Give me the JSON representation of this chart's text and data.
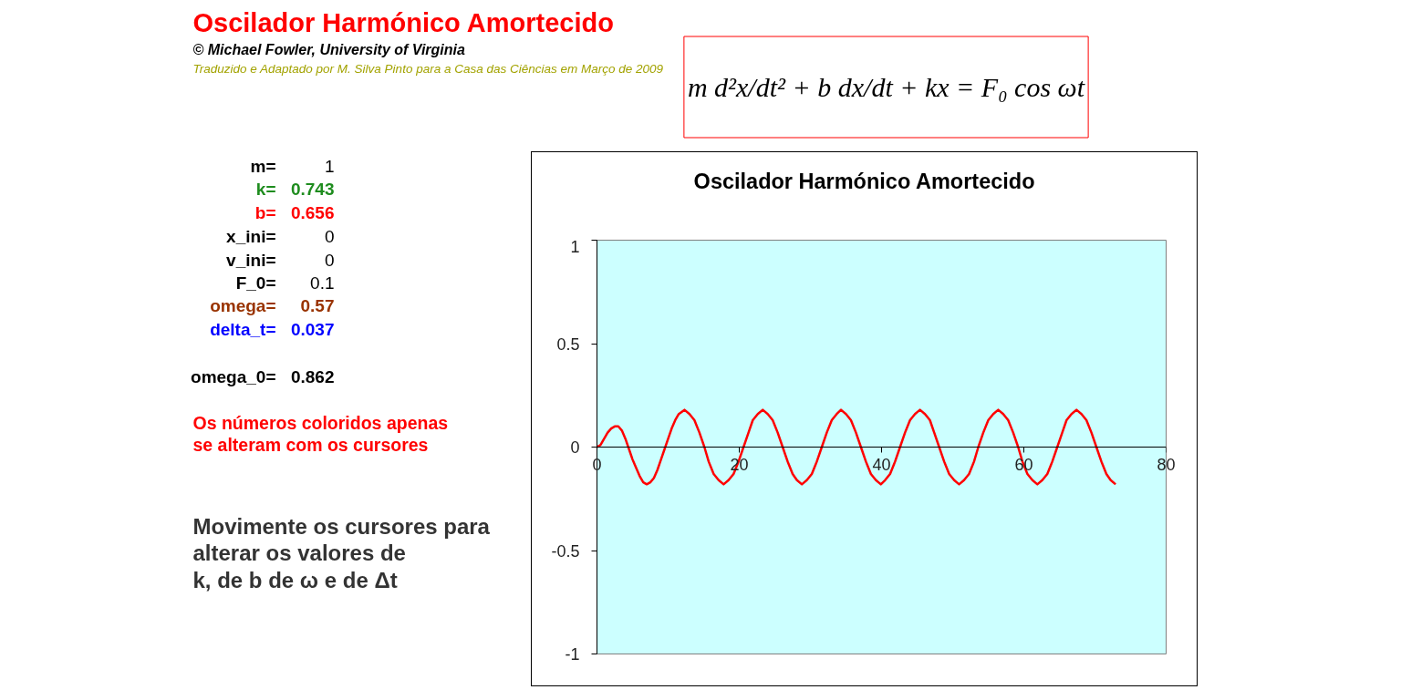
{
  "chart_data": {
    "type": "line",
    "title": "Oscilador Harmónico Amortecido",
    "annotations": [
      "Oscilador Harmónico Amortecido",
      "© Michael Fowler, University of Virginia",
      "Traduzido e Adaptado por M. Silva Pinto para a Casa das Ciências em Março de 2009",
      "m d²x/dt² + b dx/dt + kx = F₀ cos ωt",
      "m=",
      "1",
      "k=",
      "0.743",
      "b=",
      "0.656",
      "x_ini=",
      "0",
      "v_ini=",
      "0",
      "F_0=",
      "0.1",
      "omega=",
      "0.57",
      "delta_t=",
      "0.037",
      "omega_0=",
      "0.862",
      "Os números coloridos apenas",
      "se alteram com os cursores",
      "Movimente os cursores para",
      "alterar os valores de",
      "k, de b de ω e de Δt"
    ],
    "x": [
      0,
      0.5,
      1,
      1.5,
      2,
      2.5,
      3,
      3.5,
      4,
      4.5,
      5,
      5.5,
      6,
      6.5,
      7,
      7.5,
      8,
      8.5,
      9,
      9.5,
      10,
      10.5,
      11,
      11.5,
      12.3,
      13.0,
      13.7,
      14.4,
      15.1,
      15.7,
      16.4,
      17.1,
      17.8,
      18.5,
      19.2,
      19.9,
      20.6,
      21.3,
      21.9,
      22.6,
      23.3,
      24.0,
      24.7,
      25.4,
      26.1,
      26.8,
      27.5,
      28.1,
      28.8,
      29.5,
      30.2,
      30.9,
      31.6,
      32.3,
      33.0,
      33.7,
      34.3,
      35.0,
      35.7,
      36.4,
      37.1,
      37.8,
      38.5,
      39.2,
      39.9,
      40.5,
      41.2,
      41.9,
      42.6,
      43.3,
      44.0,
      44.7,
      45.4,
      46.1,
      46.8,
      47.4,
      48.1,
      48.8,
      49.5,
      50.2,
      50.9,
      51.6,
      52.3,
      53.0,
      53.6,
      54.3,
      55.0,
      55.7,
      56.4,
      57.1,
      57.8,
      58.5,
      59.2,
      59.8,
      60.5,
      61.2,
      61.9,
      62.6,
      63.3,
      64.0,
      64.7,
      65.4,
      66.0,
      66.7,
      67.4,
      68.1,
      68.8,
      69.5,
      70.2,
      70.9,
      71.6,
      72.2,
      72.9
    ],
    "series": [
      {
        "color": "#ff0000",
        "values": [
          0,
          0.01,
          0.04,
          0.07,
          0.09,
          0.1,
          0.1,
          0.08,
          0.04,
          -0.01,
          -0.06,
          -0.1,
          -0.14,
          -0.17,
          -0.18,
          -0.17,
          -0.15,
          -0.11,
          -0.06,
          -0.01,
          0.04,
          0.09,
          0.13,
          0.16,
          0.18,
          0.16,
          0.13,
          0.07,
          0,
          -0.07,
          -0.13,
          -0.16,
          -0.18,
          -0.16,
          -0.13,
          -0.07,
          0,
          0.07,
          0.13,
          0.16,
          0.18,
          0.16,
          0.13,
          0.07,
          0,
          -0.07,
          -0.13,
          -0.16,
          -0.18,
          -0.16,
          -0.13,
          -0.07,
          0,
          0.07,
          0.13,
          0.16,
          0.18,
          0.16,
          0.13,
          0.07,
          0,
          -0.07,
          -0.13,
          -0.16,
          -0.18,
          -0.16,
          -0.13,
          -0.07,
          0,
          0.07,
          0.13,
          0.16,
          0.18,
          0.16,
          0.13,
          0.07,
          0,
          -0.07,
          -0.13,
          -0.16,
          -0.18,
          -0.16,
          -0.13,
          -0.07,
          0,
          0.07,
          0.13,
          0.16,
          0.18,
          0.16,
          0.13,
          0.07,
          0,
          -0.07,
          -0.13,
          -0.16,
          -0.18,
          -0.16,
          -0.13,
          -0.07,
          0,
          0.07,
          0.13,
          0.16,
          0.18,
          0.16,
          0.13,
          0.07,
          0,
          -0.07,
          -0.13,
          -0.16,
          -0.18
        ]
      }
    ],
    "xlim": [
      0,
      80
    ],
    "ylim": [
      -1,
      1
    ],
    "xticks": [
      0,
      20,
      40,
      60,
      80
    ],
    "yticks": [
      -1,
      -0.5,
      0,
      0.5,
      1
    ]
  }
}
